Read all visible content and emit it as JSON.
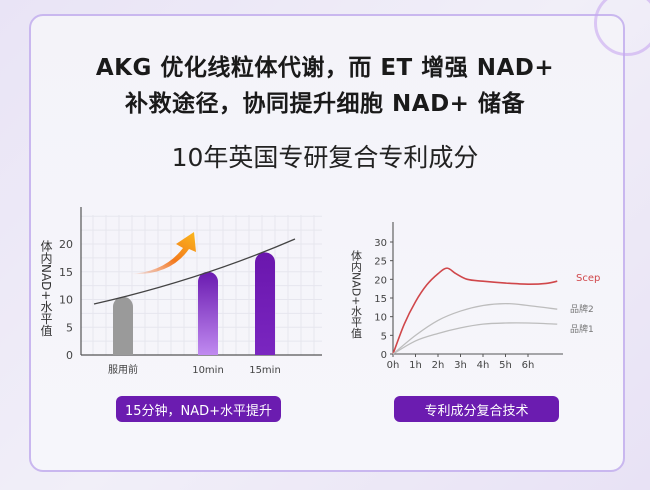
{
  "header": {
    "title_line1": "AKG 优化线粒体代谢，而 ET 增强 NAD+",
    "title_line2": "补救途径，协同提升细胞 NAD+ 储备",
    "subtitle": "10年英国专研复合专利成分"
  },
  "buttons": {
    "left": "15分钟，NAD+水平提升",
    "right": "专利成分复合技术"
  },
  "chart_data": [
    {
      "type": "bar",
      "ylabel": "体内NAD+水平值",
      "categories": [
        "服用前",
        "10min",
        "15min"
      ],
      "values": [
        10.5,
        15,
        18.5
      ],
      "yticks": [
        0,
        5,
        10,
        15,
        20
      ],
      "ylim": [
        0,
        25
      ],
      "grid": true,
      "colors": [
        "#9a9a9a",
        "#8a3fd6",
        "#6a1ab0"
      ],
      "trend_line": true,
      "arrow": "up"
    },
    {
      "type": "line",
      "ylabel": "体内NAD+水平值",
      "xticks": [
        "0h",
        "1h",
        "2h",
        "3h",
        "4h",
        "5h",
        "6h"
      ],
      "yticks": [
        0,
        5,
        10,
        15,
        20,
        25,
        30
      ],
      "ylim": [
        0,
        33
      ],
      "xlim": [
        0,
        7.5
      ],
      "grid": false,
      "series": [
        {
          "name": "Scep",
          "color": "#d0474a",
          "x": [
            0,
            0.5,
            1,
            1.5,
            2,
            2.4,
            2.8,
            3.3,
            4,
            5,
            6,
            6.8,
            7.3
          ],
          "y": [
            0,
            8,
            14,
            18.5,
            21.5,
            23,
            21.5,
            20,
            19.5,
            19,
            18.7,
            18.9,
            19.5
          ]
        },
        {
          "name": "品牌2",
          "color": "#bdbdbd",
          "x": [
            0,
            1,
            2,
            3,
            4,
            5,
            6,
            7.3
          ],
          "y": [
            0,
            5,
            9,
            11.5,
            13,
            13.5,
            13,
            12
          ]
        },
        {
          "name": "品牌1",
          "color": "#bdbdbd",
          "x": [
            0,
            1,
            2,
            3,
            4,
            5,
            6,
            7.3
          ],
          "y": [
            0,
            3.5,
            5.5,
            7,
            8,
            8.3,
            8.3,
            8
          ]
        }
      ]
    }
  ]
}
